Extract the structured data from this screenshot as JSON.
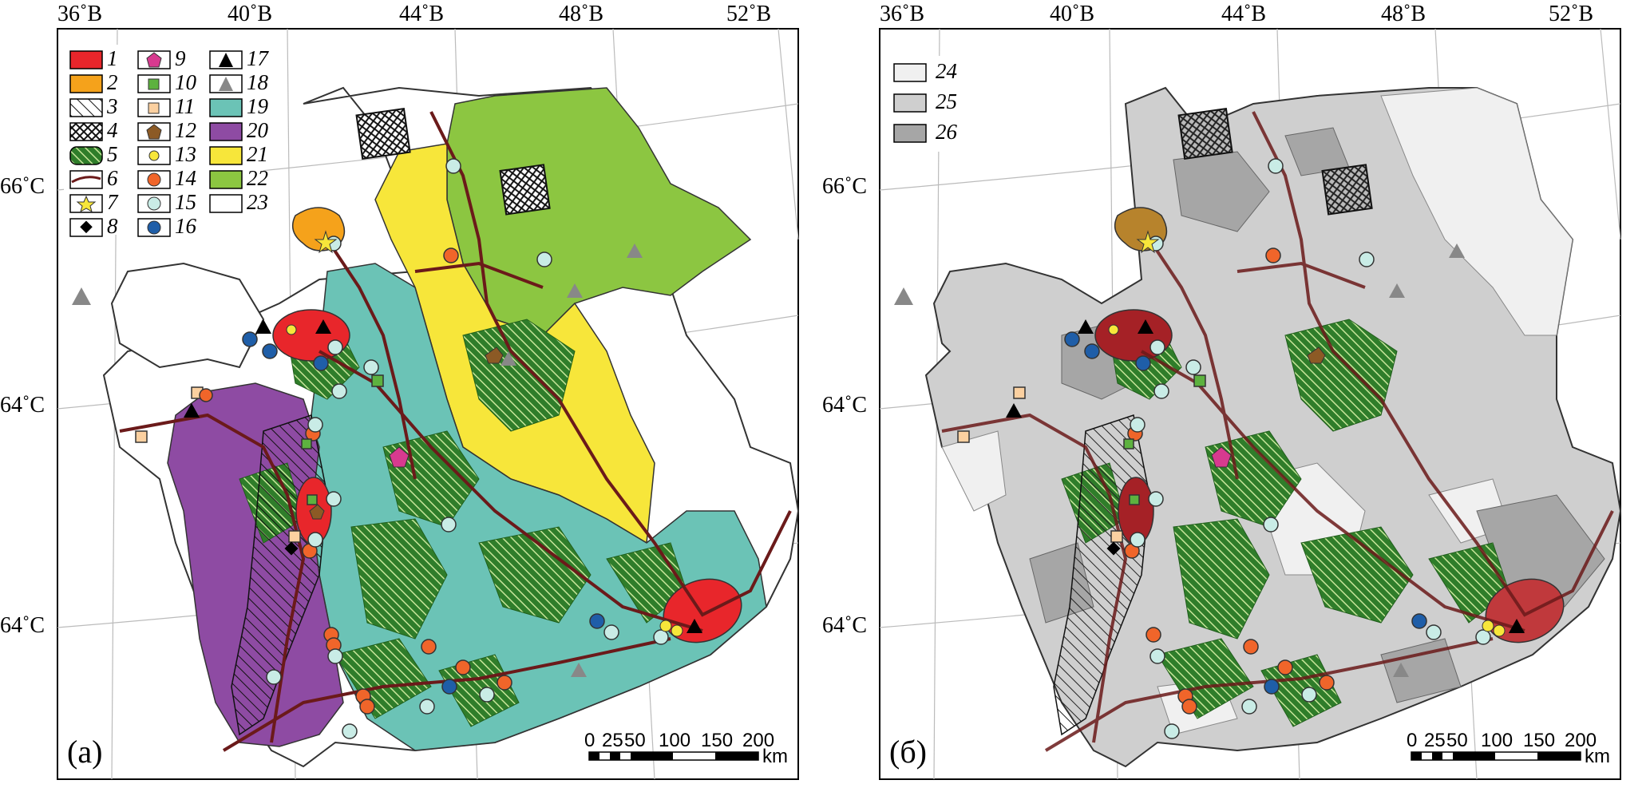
{
  "panels": [
    {
      "letter": "(а)",
      "longitudes": [
        "36˚В",
        "40˚В",
        "44˚В",
        "48˚В",
        "52˚В"
      ],
      "latitudes": [
        "66˚С",
        "64˚С",
        "64˚С"
      ]
    },
    {
      "letter": "(б)",
      "longitudes": [
        "36˚В",
        "40˚В",
        "44˚В",
        "48˚В",
        "52˚В"
      ],
      "latitudes": [
        "66˚С",
        "64˚С",
        "64˚С"
      ]
    }
  ],
  "scale": {
    "ticks": [
      "0",
      "25",
      "50",
      "100",
      "150",
      "200"
    ],
    "unit": "km"
  },
  "legend_a": {
    "items": [
      {
        "num": "1",
        "symbol": "red-fill"
      },
      {
        "num": "2",
        "symbol": "orange-fill"
      },
      {
        "num": "3",
        "symbol": "diagonal-hatch"
      },
      {
        "num": "4",
        "symbol": "cross-hatch"
      },
      {
        "num": "5",
        "symbol": "green-striped"
      },
      {
        "num": "6",
        "symbol": "road-line"
      },
      {
        "num": "7",
        "symbol": "yellow-star"
      },
      {
        "num": "8",
        "symbol": "black-diamond"
      },
      {
        "num": "9",
        "symbol": "magenta-pentagon"
      },
      {
        "num": "10",
        "symbol": "green-square"
      },
      {
        "num": "11",
        "symbol": "peach-square"
      },
      {
        "num": "12",
        "symbol": "brown-pentagon"
      },
      {
        "num": "13",
        "symbol": "yellow-dot"
      },
      {
        "num": "14",
        "symbol": "orange-circle"
      },
      {
        "num": "15",
        "symbol": "lightblue-circle"
      },
      {
        "num": "16",
        "symbol": "blue-circle"
      },
      {
        "num": "17",
        "symbol": "black-triangle"
      },
      {
        "num": "18",
        "symbol": "gray-triangle"
      },
      {
        "num": "19",
        "symbol": "teal-fill"
      },
      {
        "num": "20",
        "symbol": "purple-fill"
      },
      {
        "num": "21",
        "symbol": "yellow-fill"
      },
      {
        "num": "22",
        "symbol": "green-fill"
      },
      {
        "num": "23",
        "symbol": "white-fill"
      }
    ]
  },
  "legend_b": {
    "items": [
      {
        "num": "24",
        "symbol": "very-light-gray"
      },
      {
        "num": "25",
        "symbol": "light-gray"
      },
      {
        "num": "26",
        "symbol": "mid-gray"
      }
    ]
  },
  "colors": {
    "red": "#e8262b",
    "orange": "#f5a21b",
    "teal": "#6bc3b6",
    "purple": "#8e4ba3",
    "yellow": "#f7e63a",
    "green": "#8cc641",
    "darkgreen": "#2f7d2a",
    "road": "#6b1a1a",
    "gray1": "#f0f0f0",
    "gray2": "#cfcfcf",
    "gray3": "#a6a6a6"
  }
}
